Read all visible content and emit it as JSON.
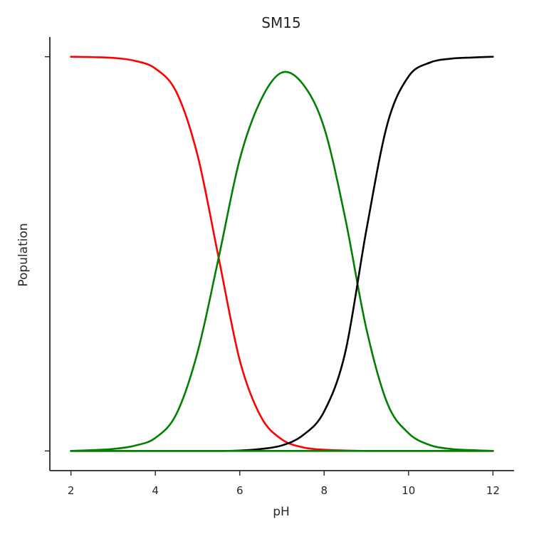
{
  "chart_data": {
    "type": "line",
    "title": "SM15",
    "xlabel": "pH",
    "ylabel": "Population",
    "xlim": [
      1.5,
      12.5
    ],
    "ylim": [
      -0.05,
      1.05
    ],
    "x_ticks": [
      2,
      4,
      6,
      8,
      10,
      12
    ],
    "x_tick_labels": [
      "2",
      "4",
      "6",
      "8",
      "10",
      "12"
    ],
    "y_ticks": [
      0,
      1
    ],
    "y_tick_labels": [
      "",
      ""
    ],
    "grid": false,
    "legend": false,
    "x": [
      2.0,
      2.5,
      3.0,
      3.5,
      4.0,
      4.5,
      5.0,
      5.5,
      6.0,
      6.5,
      7.0,
      7.5,
      8.0,
      8.5,
      9.0,
      9.5,
      10.0,
      10.5,
      11.0,
      11.5,
      12.0
    ],
    "series": [
      {
        "color": "#ff0000",
        "values": [
          1.0,
          0.999,
          0.997,
          0.99,
          0.97,
          0.91,
          0.75,
          0.49,
          0.23,
          0.087,
          0.029,
          0.009,
          0.003,
          0.001,
          0.0,
          0.0,
          0.0,
          0.0,
          0.0,
          0.0,
          0.0
        ]
      },
      {
        "color": "#008000",
        "values": [
          0.0,
          0.002,
          0.005,
          0.013,
          0.033,
          0.094,
          0.25,
          0.49,
          0.74,
          0.89,
          0.96,
          0.93,
          0.82,
          0.59,
          0.31,
          0.12,
          0.045,
          0.015,
          0.005,
          0.002,
          0.0
        ]
      },
      {
        "color": "#000000",
        "values": [
          0.0,
          0.0,
          0.0,
          0.0,
          0.0,
          0.0,
          0.0,
          0.0,
          0.001,
          0.005,
          0.014,
          0.04,
          0.1,
          0.25,
          0.56,
          0.83,
          0.95,
          0.985,
          0.995,
          0.998,
          1.0
        ]
      },
      {
        "color": "#008000",
        "values": [
          0.0,
          0.0,
          0.0,
          0.0,
          0.0,
          0.0,
          0.0,
          0.0,
          0.0,
          0.0,
          0.0,
          0.0,
          0.0,
          0.0,
          0.0,
          0.0,
          0.0,
          0.0,
          0.0,
          0.0,
          0.0
        ]
      }
    ]
  }
}
